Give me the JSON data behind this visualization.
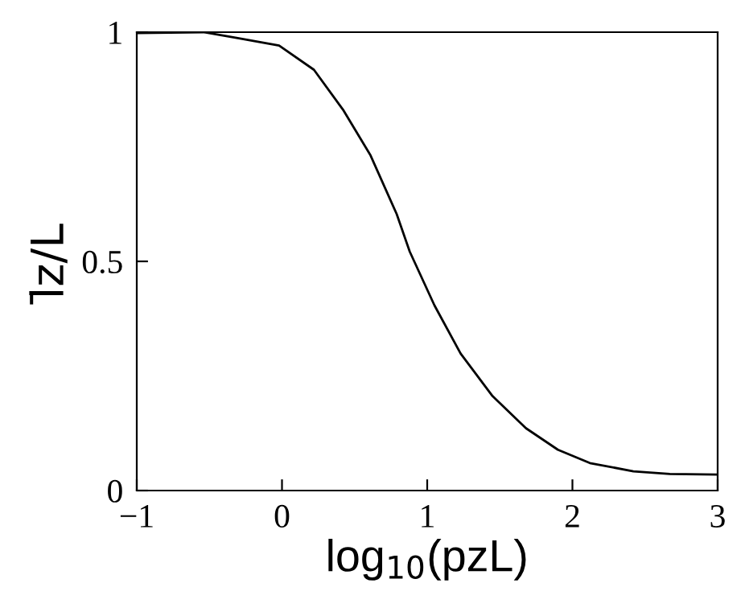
{
  "chart_data": {
    "type": "line",
    "xlabel": "log$_{10}$(pzL)",
    "ylabel": "l̄z/L",
    "xlim": [
      -1,
      3
    ],
    "ylim": [
      0,
      1
    ],
    "xticks": [
      {
        "value": -1,
        "label": "−1"
      },
      0,
      1,
      2,
      3
    ],
    "yticks": [
      0,
      0.5,
      1
    ],
    "grid": false,
    "legend": false,
    "marker": "none",
    "line_style": "solid",
    "series": [
      {
        "color": "#000000",
        "x": [
          -1,
          -0.54,
          -0.32,
          -0.02,
          0.22,
          0.42,
          0.61,
          0.79,
          0.88,
          1.05,
          1.23,
          1.45,
          1.68,
          1.9,
          2.12,
          2.42,
          2.67,
          3.0
        ],
        "values": [
          0.998,
          1.0,
          0.988,
          0.971,
          0.918,
          0.831,
          0.731,
          0.603,
          0.521,
          0.404,
          0.299,
          0.206,
          0.136,
          0.089,
          0.06,
          0.042,
          0.036,
          0.035
        ]
      }
    ]
  }
}
